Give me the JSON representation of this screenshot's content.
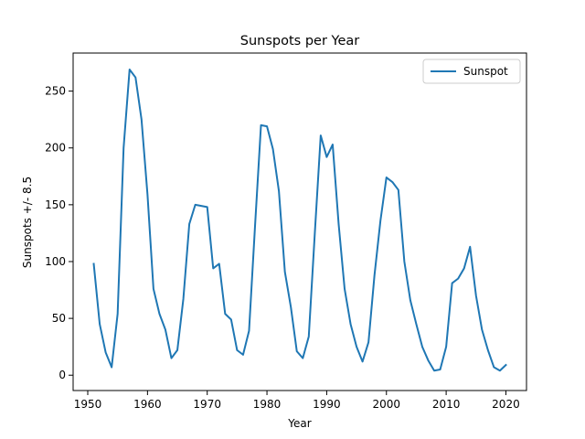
{
  "chart_data": {
    "type": "line",
    "title": "Sunspots per Year",
    "xlabel": "Year",
    "ylabel": "Sunspots +/- 8.5",
    "xlim": [
      1947.55,
      2023.45
    ],
    "ylim": [
      -13.5,
      283.5
    ],
    "xticks": [
      1950,
      1960,
      1970,
      1980,
      1990,
      2000,
      2010,
      2020
    ],
    "yticks": [
      0,
      50,
      100,
      150,
      200,
      250
    ],
    "legend": "top-right",
    "grid": false,
    "series": [
      {
        "name": "Sunspot",
        "color": "#1f77b4",
        "x": [
          1951,
          1952,
          1953,
          1954,
          1955,
          1956,
          1957,
          1958,
          1959,
          1960,
          1961,
          1962,
          1963,
          1964,
          1965,
          1966,
          1967,
          1968,
          1969,
          1970,
          1971,
          1972,
          1973,
          1974,
          1975,
          1976,
          1977,
          1978,
          1979,
          1980,
          1981,
          1982,
          1983,
          1984,
          1985,
          1986,
          1987,
          1988,
          1989,
          1990,
          1991,
          1992,
          1993,
          1994,
          1995,
          1996,
          1997,
          1998,
          1999,
          2000,
          2001,
          2002,
          2003,
          2004,
          2005,
          2006,
          2007,
          2008,
          2009,
          2010,
          2011,
          2012,
          2013,
          2014,
          2015,
          2016,
          2017,
          2018,
          2019,
          2020
        ],
        "values": [
          98,
          45,
          20,
          7,
          54,
          200,
          269,
          262,
          225,
          159,
          76,
          54,
          40,
          15,
          22,
          67,
          133,
          150,
          149,
          148,
          94,
          98,
          54,
          49,
          22,
          18,
          39,
          131,
          220,
          219,
          199,
          162,
          91,
          60,
          21,
          15,
          34,
          124,
          211,
          192,
          203,
          133,
          76,
          45,
          25,
          12,
          29,
          88,
          136,
          174,
          170,
          163,
          100,
          66,
          45,
          25,
          13,
          4,
          5,
          25,
          81,
          85,
          94,
          113,
          70,
          40,
          22,
          7,
          4,
          9
        ]
      }
    ]
  }
}
